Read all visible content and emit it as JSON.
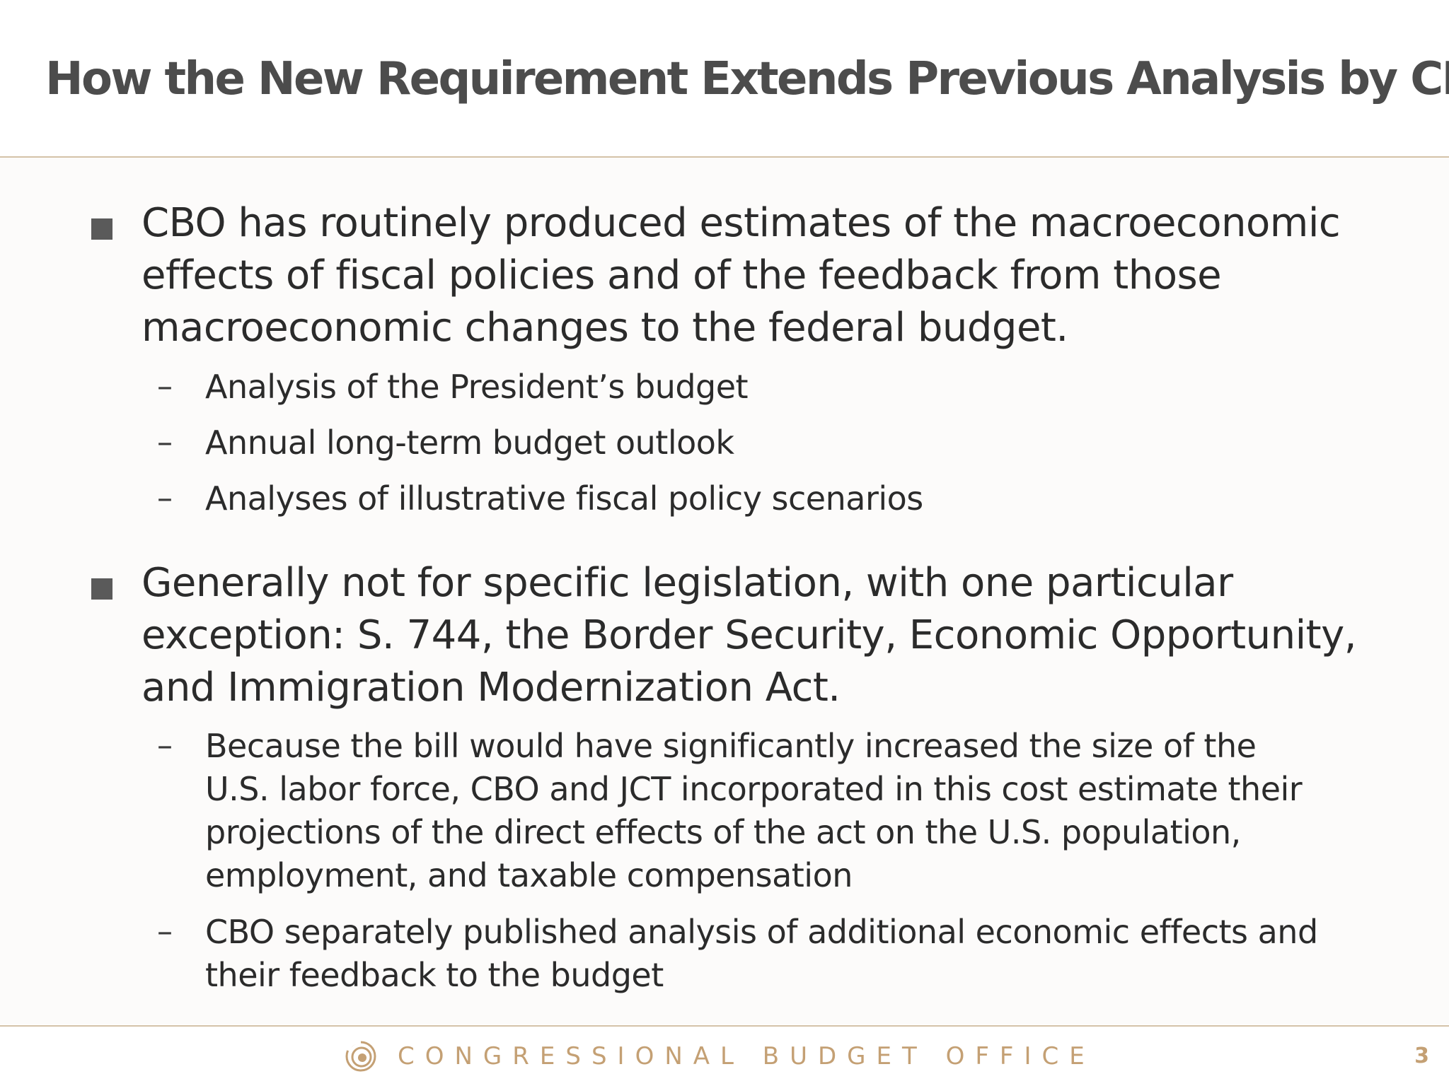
{
  "slide": {
    "title": "How the New Requirement Extends Previous Analysis by CBO",
    "bullets": [
      {
        "lines": [
          "CBO has routinely produced estimates of the macroeconomic",
          "effects of fiscal policies and of the feedback from those",
          "macroeconomic changes to the federal budget."
        ],
        "sub": [
          {
            "lines": [
              "Analysis of the President’s budget"
            ]
          },
          {
            "lines": [
              "Annual long-term budget outlook"
            ]
          },
          {
            "lines": [
              "Analyses of illustrative fiscal policy scenarios"
            ]
          }
        ]
      },
      {
        "lines": [
          "Generally not for specific legislation, with one particular",
          "exception: S. 744, the Border Security, Economic Opportunity,",
          "and Immigration Modernization Act."
        ],
        "sub": [
          {
            "lines": [
              "Because the bill would have significantly increased the size of the",
              "U.S. labor force, CBO and JCT incorporated in this cost estimate their",
              "projections of the direct effects of the act on the U.S. population,",
              "employment, and taxable compensation"
            ]
          },
          {
            "lines": [
              "CBO separately published analysis of additional economic effects and",
              "their feedback to the budget"
            ]
          }
        ]
      }
    ],
    "dash": "–"
  },
  "footer": {
    "organization": "CONGRESSIONAL BUDGET OFFICE",
    "page_number": "3",
    "logo_icon": "cbo-swirl-logo-icon"
  },
  "colors": {
    "title": "#4c4c4c",
    "body_text": "#2b2b2b",
    "bullet_square": "#5a5a5a",
    "accent_gold": "#c4a074",
    "rule": "#d4c2a8"
  }
}
